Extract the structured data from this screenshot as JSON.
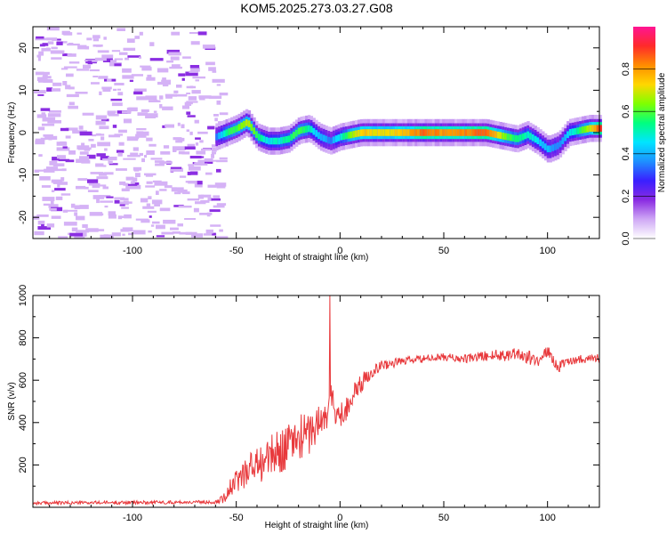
{
  "title": "KOM5.2025.273.03.27.G08",
  "colors": {
    "snr_line": "#e8393c",
    "axis": "#000000",
    "colormap": [
      "#ffffff",
      "#cfa8f5",
      "#8a2be2",
      "#3a1fff",
      "#1e90ff",
      "#00e5ff",
      "#00ff7f",
      "#7fff00",
      "#ffd700",
      "#ff8c00",
      "#ff2a2a",
      "#ff1493"
    ]
  },
  "chart_data": [
    {
      "type": "heatmap",
      "name": "spectrogram",
      "xlabel": "Height of straight line (km)",
      "ylabel": "Frequency (Hz)",
      "xlim": [
        -148,
        125
      ],
      "ylim": [
        -25,
        25
      ],
      "xticks": [
        -100,
        -50,
        0,
        50,
        100
      ],
      "yticks": [
        -20,
        -10,
        0,
        10,
        20
      ],
      "ridge": {
        "x": [
          -60,
          -55,
          -50,
          -45,
          -40,
          -35,
          -30,
          -25,
          -20,
          -15,
          -10,
          -5,
          0,
          5,
          10,
          20,
          30,
          40,
          50,
          60,
          70,
          80,
          85,
          90,
          95,
          100,
          105,
          110,
          115,
          120,
          125
        ],
        "freq": [
          -1,
          0,
          1,
          2.5,
          -1,
          -2,
          -2,
          -1.5,
          0.5,
          1,
          -1,
          -2,
          -1,
          -0.5,
          0,
          0,
          0,
          0,
          0,
          0,
          0,
          -1,
          -1.5,
          -0.5,
          -2,
          -4,
          -3,
          0,
          0.5,
          1,
          1
        ],
        "amp": [
          0.35,
          0.55,
          0.6,
          0.7,
          0.55,
          0.45,
          0.5,
          0.55,
          0.6,
          0.5,
          0.4,
          0.35,
          0.5,
          0.65,
          0.75,
          0.7,
          0.75,
          0.85,
          0.8,
          0.82,
          0.88,
          0.6,
          0.55,
          0.5,
          0.45,
          0.4,
          0.35,
          0.45,
          0.55,
          0.7,
          0.9
        ]
      },
      "noise_region_x": [
        -148,
        -58
      ]
    },
    {
      "type": "colorbar",
      "label": "Normalized spectral amplitude",
      "ticks": [
        0.0,
        0.2,
        0.4,
        0.6,
        0.8
      ],
      "range": [
        0,
        1
      ]
    },
    {
      "type": "line",
      "name": "snr",
      "xlabel": "Height of straight line (km)",
      "ylabel": "SNR (v/v)",
      "xlim": [
        -148,
        125
      ],
      "ylim": [
        0,
        1000
      ],
      "xticks": [
        -100,
        -50,
        0,
        50,
        100
      ],
      "yticks": [
        200,
        400,
        600,
        800,
        1000
      ],
      "envelope": {
        "x": [
          -148,
          -60,
          -55,
          -50,
          -45,
          -40,
          -35,
          -30,
          -25,
          -20,
          -15,
          -10,
          -6,
          -5,
          -3,
          0,
          5,
          10,
          15,
          20,
          30,
          40,
          50,
          60,
          70,
          80,
          85,
          90,
          95,
          100,
          105,
          110,
          115,
          125
        ],
        "y": [
          20,
          25,
          60,
          120,
          180,
          200,
          230,
          260,
          290,
          330,
          350,
          400,
          440,
          560,
          470,
          420,
          510,
          580,
          640,
          670,
          690,
          700,
          710,
          700,
          715,
          720,
          730,
          710,
          690,
          740,
          660,
          690,
          700,
          705
        ],
        "jitter": [
          8,
          8,
          40,
          60,
          80,
          90,
          100,
          100,
          110,
          110,
          100,
          100,
          90,
          90,
          80,
          70,
          60,
          50,
          30,
          25,
          20,
          18,
          18,
          20,
          25,
          30,
          35,
          35,
          30,
          25,
          25,
          20,
          20,
          20
        ]
      },
      "spike": {
        "x": -5,
        "y": 1000
      }
    }
  ]
}
